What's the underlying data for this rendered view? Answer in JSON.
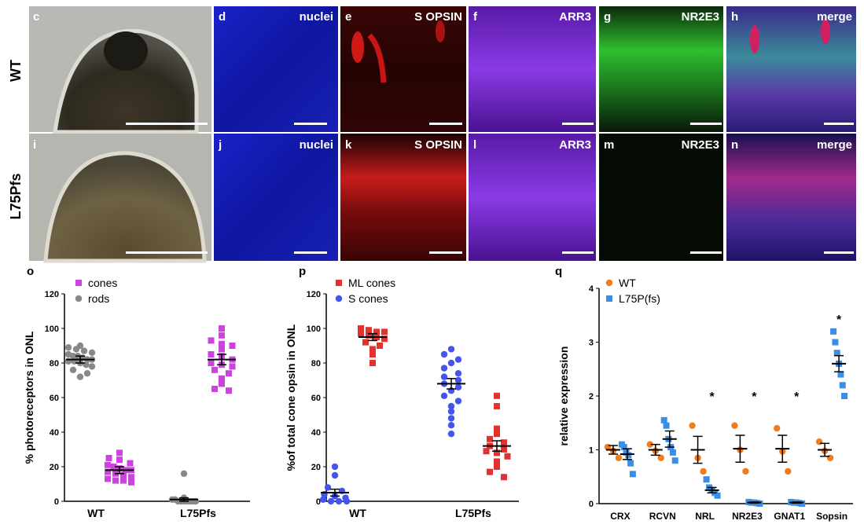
{
  "rows": [
    "WT",
    "L75Pfs"
  ],
  "panels_top": [
    {
      "letter": "c",
      "label": ""
    },
    {
      "letter": "d",
      "label": "nuclei"
    },
    {
      "letter": "e",
      "label": "S OPSIN"
    },
    {
      "letter": "f",
      "label": "ARR3"
    },
    {
      "letter": "g",
      "label": "NR2E3"
    },
    {
      "letter": "h",
      "label": "merge"
    }
  ],
  "panels_bottom": [
    {
      "letter": "i",
      "label": ""
    },
    {
      "letter": "j",
      "label": "nuclei"
    },
    {
      "letter": "k",
      "label": "S OPSIN"
    },
    {
      "letter": "l",
      "label": "ARR3"
    },
    {
      "letter": "m",
      "label": "NR2E3"
    },
    {
      "letter": "n",
      "label": "merge"
    }
  ],
  "colors": {
    "cones": "#cc44dd",
    "rods": "#888888",
    "ml_cones": "#e53030",
    "s_cones": "#4455ee",
    "wt": "#f07c1e",
    "l75p": "#3a8ee6"
  },
  "chart_data": [
    {
      "panel": "o",
      "type": "scatter",
      "ylabel": "% photoreceptors in ONL",
      "ylim": [
        0,
        120
      ],
      "yticks": [
        0,
        20,
        40,
        60,
        80,
        100,
        120
      ],
      "categories": [
        "WT",
        "L75Pfs"
      ],
      "legend": [
        "cones",
        "rods"
      ],
      "series": [
        {
          "name": "rods",
          "group": "WT",
          "mean": 82,
          "sem": 2,
          "values": [
            90,
            89,
            88,
            87,
            86,
            85,
            84,
            84,
            83,
            82,
            82,
            81,
            81,
            80,
            79,
            78,
            76,
            74,
            72
          ]
        },
        {
          "name": "cones",
          "group": "WT",
          "mean": 18,
          "sem": 2,
          "values": [
            28,
            25,
            24,
            22,
            21,
            20,
            19,
            18,
            18,
            17,
            16,
            15,
            14,
            13,
            12,
            12,
            11
          ]
        },
        {
          "name": "cones",
          "group": "L75Pfs",
          "mean": 82,
          "sem": 3,
          "values": [
            100,
            96,
            93,
            91,
            90,
            88,
            85,
            84,
            82,
            80,
            79,
            78,
            76,
            74,
            71,
            68,
            65,
            64
          ]
        },
        {
          "name": "rods",
          "group": "L75Pfs",
          "mean": 1,
          "sem": 1,
          "values": [
            16,
            2,
            1,
            1,
            0,
            0,
            0,
            0,
            0,
            0,
            0
          ]
        }
      ]
    },
    {
      "panel": "p",
      "type": "scatter",
      "ylabel": "%of total cone opsin in ONL",
      "ylim": [
        0,
        120
      ],
      "yticks": [
        0,
        20,
        40,
        60,
        80,
        100,
        120
      ],
      "categories": [
        "WT",
        "L75Pfs"
      ],
      "legend": [
        "ML cones",
        "S cones"
      ],
      "series": [
        {
          "name": "S cones",
          "group": "WT",
          "mean": 5,
          "sem": 2,
          "values": [
            20,
            15,
            8,
            6,
            4,
            3,
            2,
            1,
            0,
            0,
            0
          ]
        },
        {
          "name": "ML cones",
          "group": "WT",
          "mean": 95,
          "sem": 2,
          "values": [
            100,
            99,
            98,
            98,
            97,
            96,
            95,
            94,
            92,
            90,
            88,
            85,
            80
          ]
        },
        {
          "name": "S cones",
          "group": "L75Pfs",
          "mean": 68,
          "sem": 3,
          "values": [
            88,
            85,
            82,
            80,
            77,
            74,
            72,
            70,
            68,
            66,
            64,
            61,
            58,
            55,
            52,
            48,
            44,
            39
          ]
        },
        {
          "name": "ML cones",
          "group": "L75Pfs",
          "mean": 32,
          "sem": 3,
          "values": [
            61,
            55,
            42,
            39,
            36,
            34,
            32,
            30,
            29,
            28,
            26,
            23,
            20,
            17,
            14
          ]
        }
      ]
    },
    {
      "panel": "q",
      "type": "scatter",
      "ylabel": "relative expression",
      "ylim": [
        0,
        4
      ],
      "yticks": [
        0,
        1,
        2,
        3,
        4
      ],
      "categories": [
        "CRX",
        "RCVN",
        "NRL",
        "NR2E3",
        "GNAT1",
        "Sopsin"
      ],
      "legend": [
        "WT",
        "L75P(fs)"
      ],
      "significance": [
        "",
        "",
        "*",
        "*",
        "*",
        "*"
      ],
      "series": [
        {
          "name": "WT",
          "means": [
            1.0,
            1.0,
            1.0,
            1.02,
            1.02,
            1.0
          ],
          "sems": [
            0.08,
            0.1,
            0.25,
            0.25,
            0.25,
            0.12
          ],
          "values": [
            [
              1.05,
              0.98,
              0.85
            ],
            [
              1.1,
              0.98,
              0.85
            ],
            [
              1.45,
              0.85,
              0.6
            ],
            [
              1.45,
              1.0,
              0.6
            ],
            [
              1.4,
              0.97,
              0.6
            ],
            [
              1.15,
              0.98,
              0.85
            ]
          ]
        },
        {
          "name": "L75P(fs)",
          "means": [
            0.92,
            1.2,
            0.25,
            0.02,
            0.02,
            2.6
          ],
          "sems": [
            0.1,
            0.15,
            0.05,
            0.01,
            0.01,
            0.15
          ],
          "values": [
            [
              1.1,
              1.05,
              0.95,
              0.9,
              0.75,
              0.55
            ],
            [
              1.55,
              1.45,
              1.2,
              1.05,
              0.95,
              0.8
            ],
            [
              0.45,
              0.3,
              0.25,
              0.2,
              0.15
            ],
            [
              0.03,
              0.02,
              0.02,
              0.01,
              0.0
            ],
            [
              0.03,
              0.02,
              0.02,
              0.01,
              0.0
            ],
            [
              3.2,
              3.0,
              2.8,
              2.6,
              2.4,
              2.2,
              2.0
            ]
          ]
        }
      ]
    }
  ]
}
